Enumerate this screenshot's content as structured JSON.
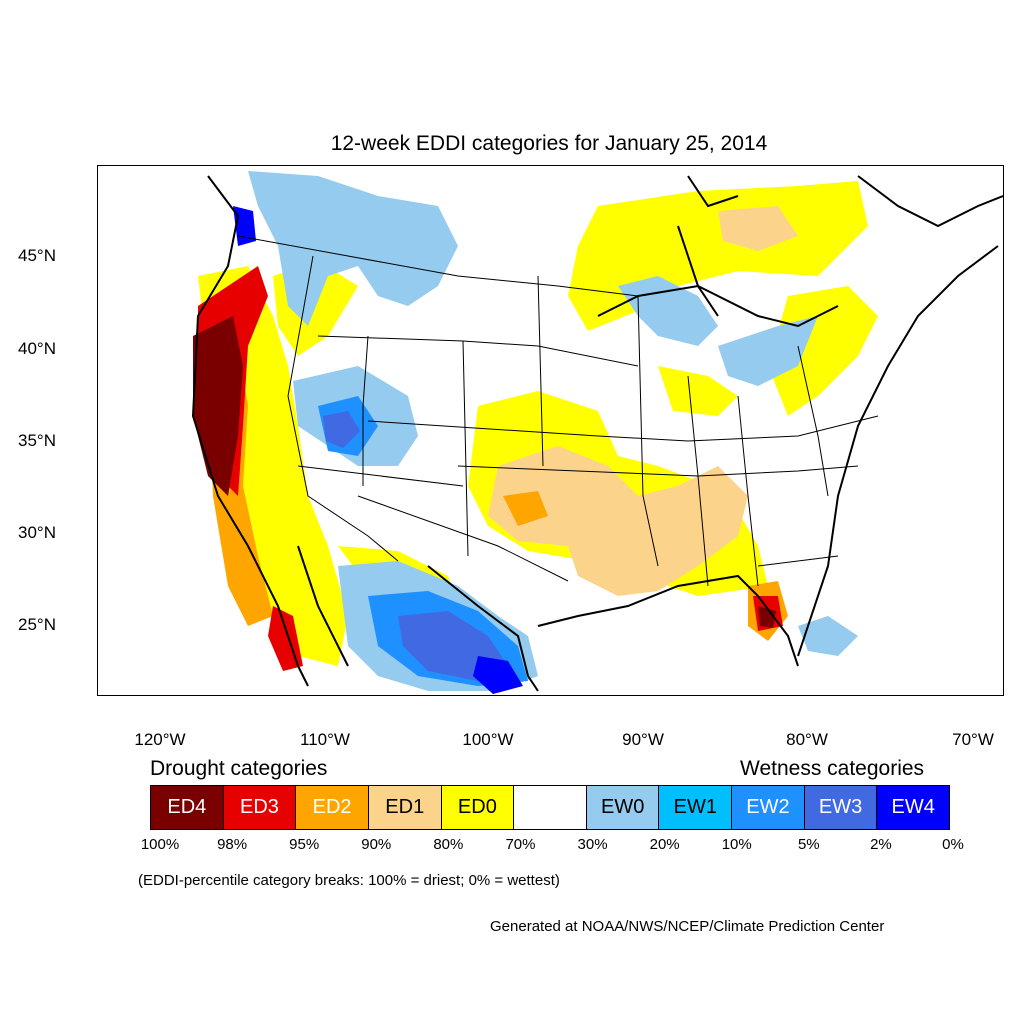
{
  "title": "12-week EDDI categories for January 25, 2014",
  "y_axis_labels": [
    "45°N",
    "40°N",
    "35°N",
    "30°N",
    "25°N"
  ],
  "x_axis_labels": [
    "120°W",
    "110°W",
    "100°W",
    "90°W",
    "80°W",
    "70°W"
  ],
  "legend": {
    "drought_heading": "Drought categories",
    "wetness_heading": "Wetness categories",
    "categories": [
      {
        "label": "ED4",
        "color": "#7a0000",
        "text_color": "#ffffff"
      },
      {
        "label": "ED3",
        "color": "#e60000",
        "text_color": "#ffffff"
      },
      {
        "label": "ED2",
        "color": "#ffa500",
        "text_color": "#ffffff"
      },
      {
        "label": "ED1",
        "color": "#fcd38b",
        "text_color": "#000000"
      },
      {
        "label": "ED0",
        "color": "#ffff00",
        "text_color": "#000000"
      },
      {
        "label": "",
        "color": "#ffffff",
        "text_color": "#000000"
      },
      {
        "label": "EW0",
        "color": "#94cbee",
        "text_color": "#000000"
      },
      {
        "label": "EW1",
        "color": "#00bfff",
        "text_color": "#000000"
      },
      {
        "label": "EW2",
        "color": "#1e90ff",
        "text_color": "#ffffff"
      },
      {
        "label": "EW3",
        "color": "#4169e1",
        "text_color": "#ffffff"
      },
      {
        "label": "EW4",
        "color": "#0000ff",
        "text_color": "#ffffff"
      }
    ],
    "percent_breaks": [
      "100%",
      "98%",
      "95%",
      "90%",
      "80%",
      "70%",
      "30%",
      "20%",
      "10%",
      "5%",
      "2%",
      "0%"
    ]
  },
  "note": "(EDDI-percentile category breaks: 100% = driest; 0% = wettest)",
  "credit": "Generated at NOAA/NWS/NCEP/Climate Prediction Center"
}
